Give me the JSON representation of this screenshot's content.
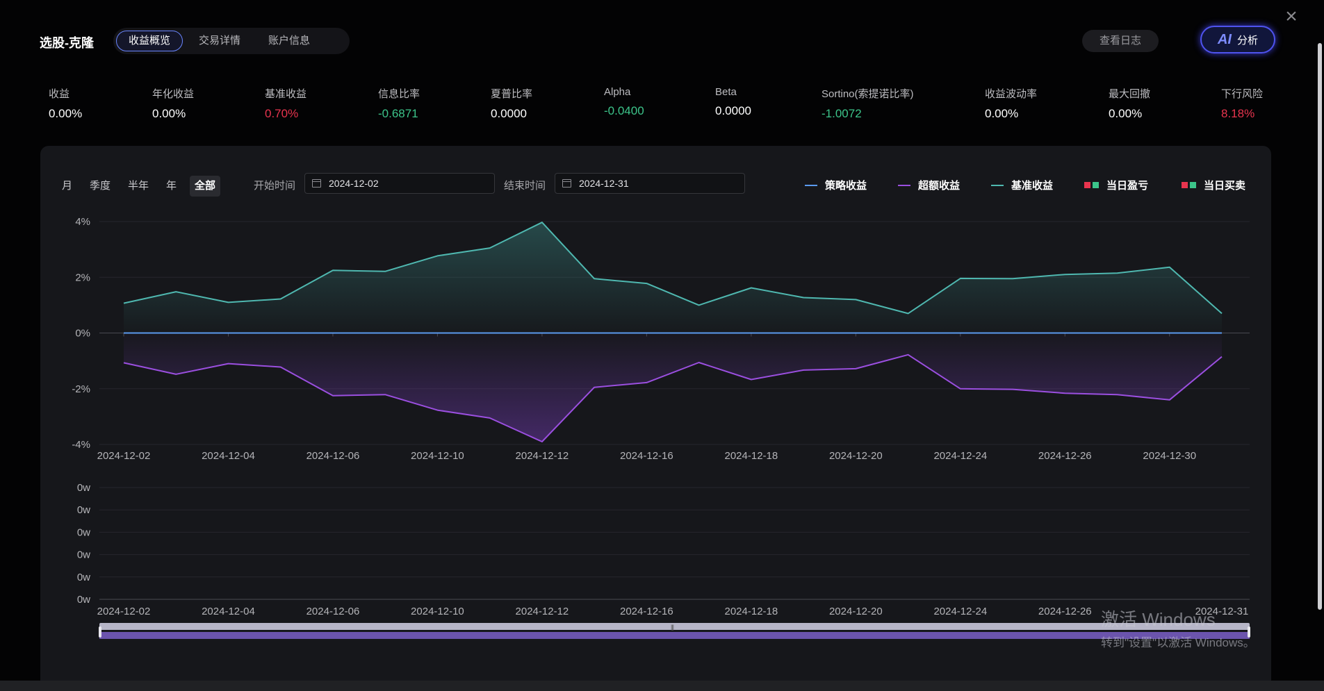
{
  "header": {
    "title": "选股-克隆",
    "tabs": [
      {
        "label": "收益概览",
        "active": true
      },
      {
        "label": "交易详情",
        "active": false
      },
      {
        "label": "账户信息",
        "active": false
      }
    ],
    "log_button": "查看日志",
    "ai_icon": "AI",
    "ai_button": "分析",
    "close_icon": "close-icon"
  },
  "metrics": [
    {
      "label": "收益",
      "value": "0.00%",
      "color": "white"
    },
    {
      "label": "年化收益",
      "value": "0.00%",
      "color": "white"
    },
    {
      "label": "基准收益",
      "value": "0.70%",
      "color": "red"
    },
    {
      "label": "信息比率",
      "value": "-0.6871",
      "color": "green"
    },
    {
      "label": "夏普比率",
      "value": "0.0000",
      "color": "white"
    },
    {
      "label": "Alpha",
      "value": "-0.0400",
      "color": "green"
    },
    {
      "label": "Beta",
      "value": "0.0000",
      "color": "white"
    },
    {
      "label": "Sortino(索提诺比率)",
      "value": "-1.0072",
      "color": "green"
    },
    {
      "label": "收益波动率",
      "value": "0.00%",
      "color": "white"
    },
    {
      "label": "最大回撤",
      "value": "0.00%",
      "color": "white"
    },
    {
      "label": "下行风险",
      "value": "8.18%",
      "color": "red"
    }
  ],
  "controls": {
    "periods": [
      "月",
      "季度",
      "半年",
      "年",
      "全部"
    ],
    "active_period": "全部",
    "start_label": "开始时间",
    "start_value": "2024-12-02",
    "end_label": "结束时间",
    "end_value": "2024-12-31"
  },
  "legend": [
    {
      "name": "策略收益",
      "color": "#5b9bf0",
      "kind": "line"
    },
    {
      "name": "超额收益",
      "color": "#9b4fe0",
      "kind": "line"
    },
    {
      "name": "基准收益",
      "color": "#4fb8b0",
      "kind": "line"
    },
    {
      "name": "当日盈亏",
      "colors": [
        "#e8344e",
        "#3cc48a"
      ],
      "kind": "squares"
    },
    {
      "name": "当日买卖",
      "colors": [
        "#e8344e",
        "#3cc48a"
      ],
      "kind": "squares"
    }
  ],
  "chart_data": {
    "type": "line",
    "x": [
      "2024-12-02",
      "2024-12-03",
      "2024-12-04",
      "2024-12-05",
      "2024-12-06",
      "2024-12-09",
      "2024-12-10",
      "2024-12-11",
      "2024-12-12",
      "2024-12-13",
      "2024-12-16",
      "2024-12-17",
      "2024-12-18",
      "2024-12-19",
      "2024-12-20",
      "2024-12-23",
      "2024-12-24",
      "2024-12-25",
      "2024-12-26",
      "2024-12-27",
      "2024-12-30",
      "2024-12-31"
    ],
    "x_tick_labels": [
      "2024-12-02",
      "2024-12-04",
      "2024-12-06",
      "2024-12-10",
      "2024-12-12",
      "2024-12-16",
      "2024-12-18",
      "2024-12-20",
      "2024-12-24",
      "2024-12-26",
      "2024-12-30"
    ],
    "y_tick_labels": [
      "4%",
      "2%",
      "0%",
      "-2%",
      "-4%"
    ],
    "ylim": [
      -4,
      4
    ],
    "series": [
      {
        "name": "策略收益",
        "color": "#5b9bf0",
        "values": [
          0,
          0,
          0,
          0,
          0,
          0,
          0,
          0,
          0,
          0,
          0,
          0,
          0,
          0,
          0,
          0,
          0,
          0,
          0,
          0,
          0,
          0
        ]
      },
      {
        "name": "超额收益",
        "color": "#9b4fe0",
        "values": [
          -1.07,
          -1.48,
          -1.1,
          -1.22,
          -2.25,
          -2.21,
          -2.77,
          -3.05,
          -3.9,
          -1.95,
          -1.78,
          -1.06,
          -1.67,
          -1.33,
          -1.28,
          -0.78,
          -2.0,
          -2.02,
          -2.16,
          -2.21,
          -2.4,
          -0.85
        ]
      },
      {
        "name": "基准收益",
        "color": "#4fb8b0",
        "values": [
          1.07,
          1.48,
          1.1,
          1.22,
          2.25,
          2.21,
          2.77,
          3.05,
          3.97,
          1.95,
          1.78,
          1.0,
          1.62,
          1.27,
          1.2,
          0.7,
          1.96,
          1.95,
          2.1,
          2.15,
          2.36,
          0.7
        ]
      }
    ],
    "sub_chart": {
      "type": "bar",
      "y_tick_labels": [
        "0w",
        "0w",
        "0w",
        "0w",
        "0w",
        "0w"
      ],
      "x_tick_labels": [
        "2024-12-02",
        "2024-12-04",
        "2024-12-06",
        "2024-12-10",
        "2024-12-12",
        "2024-12-16",
        "2024-12-18",
        "2024-12-20",
        "2024-12-24",
        "2024-12-26",
        "2024-12-31"
      ]
    }
  },
  "watermark": {
    "line1": "激活 Windows",
    "line2": "转到\"设置\"以激活 Windows。"
  }
}
